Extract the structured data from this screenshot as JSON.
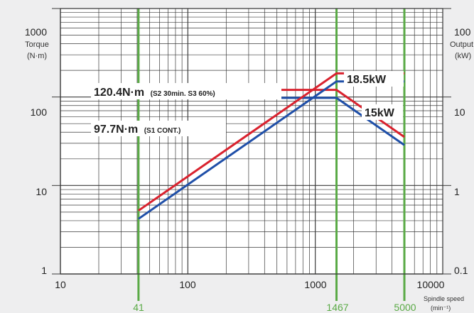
{
  "chart_data": {
    "type": "line",
    "xscale": "log",
    "yscale": "log",
    "xlim": [
      10,
      10000
    ],
    "ylim": [
      1,
      1000
    ],
    "right_ylim": [
      0.1,
      100
    ],
    "grid": true,
    "x_ticks": [
      "10",
      "100",
      "1000",
      "10000"
    ],
    "y_ticks": [
      "1",
      "10",
      "100",
      "1000"
    ],
    "right_ticks": [
      "0.1",
      "1",
      "10",
      "100"
    ],
    "left_label": [
      "Torque",
      "(N·m)"
    ],
    "right_label": [
      "Output",
      "(kW)"
    ],
    "xlabel": [
      "Spindle speed",
      "(min⁻¹)"
    ],
    "markers": [
      {
        "x": 41,
        "label": "41"
      },
      {
        "x": 1467,
        "label": "1467"
      },
      {
        "x": 5000,
        "label": "5000"
      }
    ],
    "colors": {
      "red": "#d9222e",
      "blue": "#1f4fa8",
      "green": "#5aaa46",
      "grid": "#3a3a3a"
    },
    "series": [
      {
        "axis": "torque",
        "color": "red",
        "x": [
          41,
          1467,
          5000
        ],
        "y": [
          120.4,
          120.4,
          35.3
        ]
      },
      {
        "axis": "torque",
        "color": "blue",
        "x": [
          41,
          1467,
          5000
        ],
        "y": [
          97.7,
          97.7,
          28.6
        ]
      },
      {
        "axis": "output",
        "color": "red",
        "x": [
          41,
          1467,
          5000
        ],
        "y": [
          0.52,
          18.5,
          18.5
        ]
      },
      {
        "axis": "output",
        "color": "blue",
        "x": [
          41,
          1467,
          5000
        ],
        "y": [
          0.42,
          15,
          15
        ]
      }
    ],
    "annotations": {
      "torque_s2_value": "120.4N·m",
      "torque_s2_duty": "(S2 30min. S3 60%)",
      "torque_s1_value": "97.7N·m",
      "torque_s1_duty": "(S1 CONT.)",
      "output_s2": "18.5kW",
      "output_s1": "15kW"
    }
  }
}
